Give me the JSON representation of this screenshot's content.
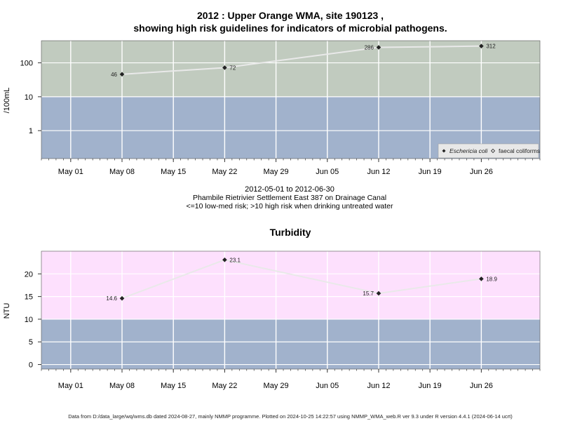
{
  "chart_data": [
    {
      "type": "line",
      "title_line1": "2012 : Upper Orange WMA, site 190123 ,",
      "title_line2": "showing high risk guidelines for indicators of microbial pathogens.",
      "ylabel": "/100mL",
      "yscale": "log",
      "ylim": [
        0.15,
        450
      ],
      "yticks": [
        1,
        10,
        100
      ],
      "ytick_labels": [
        "1",
        "10",
        "100"
      ],
      "threshold": 10,
      "colors": {
        "above": "#c1cbbf",
        "below": "#a1b2cc",
        "line": "#e9e9e9",
        "grid": "#ffffff"
      },
      "xlim": [
        "2012-04-27",
        "2012-07-04"
      ],
      "xticks": [
        "2012-05-01",
        "2012-05-08",
        "2012-05-15",
        "2012-05-22",
        "2012-05-29",
        "2012-06-05",
        "2012-06-12",
        "2012-06-19",
        "2012-06-26"
      ],
      "xtick_labels": [
        "May 01",
        "May 08",
        "May 15",
        "May 22",
        "May 29",
        "Jun 05",
        "Jun 12",
        "Jun 19",
        "Jun 26"
      ],
      "series": [
        {
          "name": "Eschericia coli",
          "marker": "filled-diamond",
          "x": [
            "2012-05-08",
            "2012-05-22",
            "2012-06-12",
            "2012-06-26"
          ],
          "values": [
            46,
            72,
            286,
            312
          ],
          "labels": [
            "46",
            "72",
            "286",
            "312"
          ],
          "label_side": [
            "left",
            "right",
            "left",
            "right"
          ]
        }
      ],
      "legend": {
        "position": "bottom-right",
        "items": [
          "Eschericia coli",
          "faecal coliforms"
        ]
      }
    },
    {
      "type": "line",
      "title": "Turbidity",
      "ylabel": "NTU",
      "ylim": [
        -1,
        25
      ],
      "yticks": [
        0,
        5,
        10,
        15,
        20
      ],
      "ytick_labels": [
        "0",
        "5",
        "10",
        "15",
        "20"
      ],
      "threshold": 10,
      "colors": {
        "above": "#fde0fd",
        "below": "#a1b2cc",
        "line": "#e9e9e9",
        "grid": "#ffffff"
      },
      "xlim": [
        "2012-04-27",
        "2012-07-04"
      ],
      "xticks": [
        "2012-05-01",
        "2012-05-08",
        "2012-05-15",
        "2012-05-22",
        "2012-05-29",
        "2012-06-05",
        "2012-06-12",
        "2012-06-19",
        "2012-06-26"
      ],
      "xtick_labels": [
        "May 01",
        "May 08",
        "May 15",
        "May 22",
        "May 29",
        "Jun 05",
        "Jun 12",
        "Jun 19",
        "Jun 26"
      ],
      "series": [
        {
          "x": [
            "2012-05-08",
            "2012-05-22",
            "2012-06-12",
            "2012-06-26"
          ],
          "values": [
            14.6,
            23.1,
            15.7,
            18.9
          ],
          "labels": [
            "14.6",
            "23.1",
            "15.7",
            "18.9"
          ],
          "label_side": [
            "left",
            "right",
            "left",
            "right"
          ]
        }
      ]
    }
  ],
  "subtitle": {
    "date_range": "2012-05-01 to 2012-06-30",
    "site": "Phambile Rietrivier Settlement East 387 on Drainage Canal",
    "risk_note": "<=10 low-med risk; >10 high risk when drinking untreated water"
  },
  "footer": "Data from D:/data_large/wq/wms.db dated 2024-08-27, mainly NMMP programme. Plotted on 2024-10-25 14:22:57 using NMMP_WMA_web.R ver 9.3 under R version 4.4.1 (2024-06-14 ucrt)"
}
